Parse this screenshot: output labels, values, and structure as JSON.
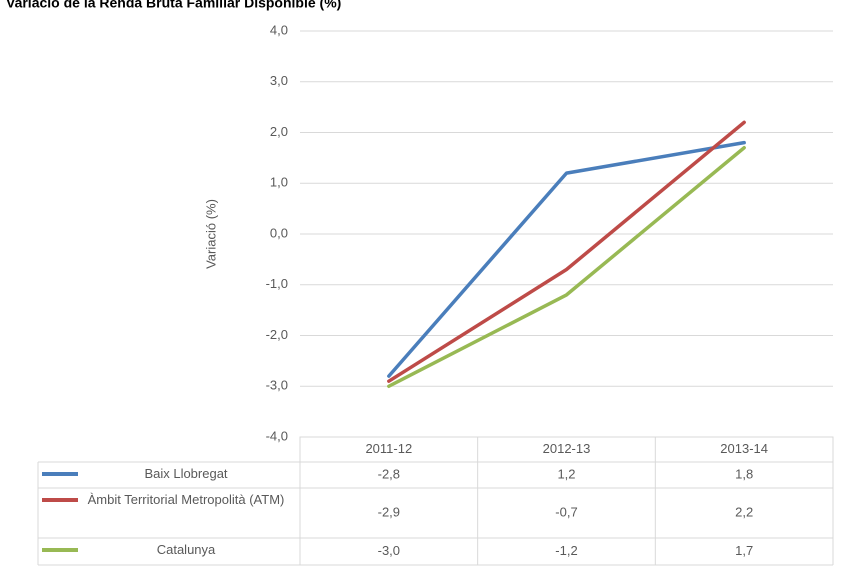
{
  "chart_data": {
    "type": "line",
    "title": "Variació de la Renda Bruta Familiar Disponible (%)",
    "y_label": "Variació (%)",
    "categories": [
      "2011-12",
      "2012-13",
      "2013-14"
    ],
    "series": [
      {
        "name": "Baix Llobregat",
        "color": "#4a7ebb",
        "values": [
          -2.8,
          1.2,
          1.8
        ],
        "value_labels": [
          "-2,8",
          "1,2",
          "1,8"
        ]
      },
      {
        "name": "Àmbit Territorial Metropolità (ATM)",
        "color": "#be4b48",
        "values": [
          -2.9,
          -0.7,
          2.2
        ],
        "value_labels": [
          "-2,9",
          "-0,7",
          "2,2"
        ]
      },
      {
        "name": "Catalunya",
        "color": "#98b954",
        "values": [
          -3.0,
          -1.2,
          1.7
        ],
        "value_labels": [
          "-3,0",
          "-1,2",
          "1,7"
        ]
      }
    ],
    "ylim": [
      -4,
      4
    ],
    "yticks": [
      {
        "value": -4,
        "label": "-4,0"
      },
      {
        "value": -3,
        "label": "-3,0"
      },
      {
        "value": -2,
        "label": "-2,0"
      },
      {
        "value": -1,
        "label": "-1,0"
      },
      {
        "value": 0,
        "label": "0,0"
      },
      {
        "value": 1,
        "label": "1,0"
      },
      {
        "value": 2,
        "label": "2,0"
      },
      {
        "value": 3,
        "label": "3,0"
      },
      {
        "value": 4,
        "label": "4,0"
      }
    ],
    "grid": true
  }
}
